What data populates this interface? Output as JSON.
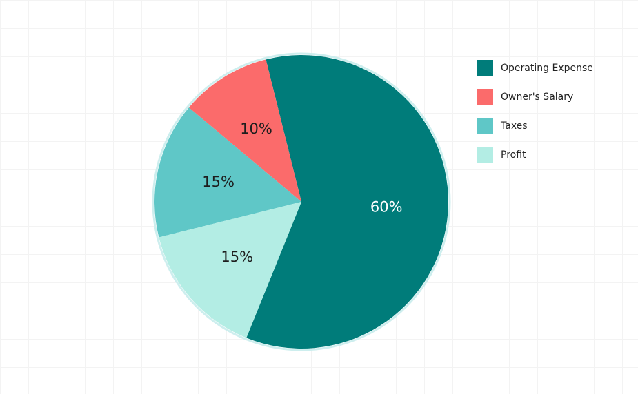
{
  "chart_data": {
    "type": "pie",
    "categories": [
      "Operating Expense",
      "Owner's Salary",
      "Taxes",
      "Profit"
    ],
    "values": [
      60,
      10,
      15,
      15
    ],
    "value_labels": [
      "60%",
      "10%",
      "15%",
      "15%"
    ],
    "colors": [
      "#007c7a",
      "#fb6b6b",
      "#5fc7c7",
      "#b3ede4"
    ],
    "label_colors": [
      "#ffffff",
      "#1d1d1d",
      "#1d1d1d",
      "#1d1d1d"
    ],
    "legend": "top-right"
  }
}
